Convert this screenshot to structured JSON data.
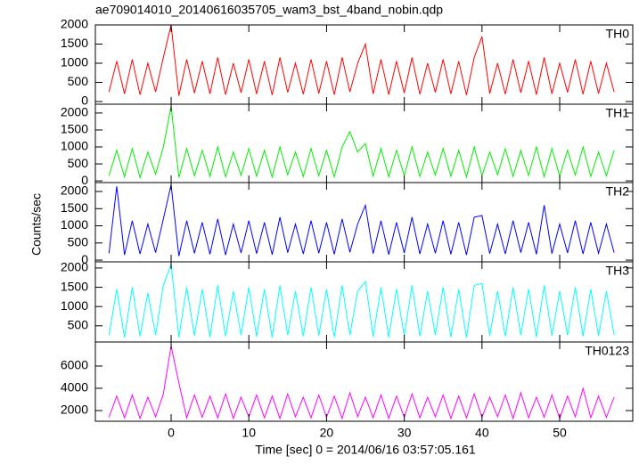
{
  "chart_data": {
    "type": "line",
    "title": "ae709014010_20140616035705_wam3_bst_4band_nobin.qdp",
    "xlabel": "Time [sec] 0 = 2014/06/16 03:57:05.161",
    "ylabel": "Counts/sec",
    "xlim": [
      -9.75,
      59.4
    ],
    "xticks": [
      0,
      10,
      20,
      30,
      40,
      50
    ],
    "x": [
      -8,
      -7,
      -6,
      -5,
      -4,
      -3,
      -2,
      -1,
      0,
      1,
      2,
      3,
      4,
      5,
      6,
      7,
      8,
      9,
      10,
      11,
      12,
      13,
      14,
      15,
      16,
      17,
      18,
      19,
      20,
      21,
      22,
      23,
      24,
      25,
      26,
      27,
      28,
      29,
      30,
      31,
      32,
      33,
      34,
      35,
      36,
      37,
      38,
      39,
      40,
      41,
      42,
      43,
      44,
      45,
      46,
      47,
      48,
      49,
      50,
      51,
      52,
      53,
      54,
      55,
      56,
      57
    ],
    "series": [
      {
        "name": "TH0",
        "color": "#ff0000",
        "ylim": [
          -70,
          2000
        ],
        "yticks": [
          0,
          500,
          1000,
          1500,
          2000
        ],
        "values": [
          250,
          1050,
          200,
          1100,
          180,
          1000,
          250,
          1150,
          2000,
          150,
          1100,
          220,
          1050,
          200,
          1150,
          180,
          1000,
          230,
          1100,
          200,
          1050,
          170,
          1150,
          240,
          1000,
          190,
          1100,
          210,
          1050,
          180,
          1150,
          250,
          1000,
          1500,
          200,
          1100,
          180,
          1050,
          220,
          1150,
          190,
          1000,
          240,
          1100,
          200,
          1050,
          170,
          1150,
          1700,
          210,
          1000,
          190,
          1100,
          230,
          1050,
          180,
          1150,
          200,
          1000,
          240,
          1100,
          190,
          1050,
          210,
          1000,
          250
        ]
      },
      {
        "name": "TH1",
        "color": "#00ee00",
        "ylim": [
          -50,
          2260
        ],
        "yticks": [
          0,
          500,
          1000,
          1500,
          2000
        ],
        "values": [
          150,
          900,
          120,
          950,
          100,
          850,
          200,
          1000,
          2200,
          100,
          950,
          150,
          900,
          130,
          1000,
          120,
          850,
          160,
          950,
          140,
          900,
          110,
          1000,
          180,
          850,
          130,
          950,
          150,
          900,
          120,
          1000,
          1450,
          850,
          1100,
          140,
          950,
          120,
          900,
          160,
          1000,
          130,
          850,
          170,
          950,
          140,
          900,
          110,
          1000,
          150,
          850,
          180,
          950,
          130,
          900,
          160,
          1000,
          120,
          950,
          140,
          900,
          170,
          1000,
          130,
          850,
          150,
          900
        ]
      },
      {
        "name": "TH2",
        "color": "#0000ff",
        "ylim": [
          -50,
          2260
        ],
        "yticks": [
          0,
          500,
          1000,
          1500,
          2000
        ],
        "values": [
          200,
          2150,
          150,
          1150,
          180,
          1050,
          220,
          1200,
          2200,
          120,
          1150,
          200,
          1100,
          170,
          1200,
          150,
          1050,
          210,
          1150,
          190,
          1100,
          160,
          1250,
          220,
          1050,
          180,
          1150,
          200,
          1100,
          170,
          1200,
          230,
          1050,
          1600,
          190,
          1150,
          160,
          1100,
          210,
          1250,
          180,
          1050,
          200,
          1150,
          170,
          1100,
          150,
          1250,
          1300,
          190,
          1050,
          180,
          1150,
          220,
          1100,
          170,
          1600,
          190,
          1050,
          210,
          1150,
          180,
          1100,
          200,
          1050,
          220
        ]
      },
      {
        "name": "TH3",
        "color": "#00ffff",
        "ylim": [
          80,
          2160
        ],
        "yticks": [
          500,
          1000,
          1500,
          2000
        ],
        "values": [
          250,
          1450,
          200,
          1500,
          230,
          1350,
          260,
          1550,
          2100,
          200,
          1500,
          240,
          1450,
          210,
          1550,
          230,
          1400,
          250,
          1500,
          220,
          1450,
          200,
          1550,
          260,
          1400,
          230,
          1500,
          240,
          1450,
          210,
          1550,
          260,
          1400,
          1650,
          220,
          1500,
          200,
          1450,
          240,
          1550,
          230,
          1400,
          260,
          1500,
          210,
          1450,
          200,
          1550,
          1600,
          240,
          1400,
          230,
          1500,
          250,
          1450,
          210,
          1550,
          240,
          1400,
          260,
          1500,
          230,
          1450,
          240,
          1400,
          260
        ]
      },
      {
        "name": "TH0123",
        "color": "#ff00ff",
        "ylim": [
          1040,
          8160
        ],
        "yticks": [
          2000,
          4000,
          6000
        ],
        "values": [
          1400,
          3300,
          1350,
          3400,
          1300,
          3200,
          1450,
          3500,
          7800,
          4500,
          1350,
          3400,
          1400,
          3300,
          1350,
          3500,
          1300,
          3200,
          1450,
          3400,
          1350,
          3300,
          1300,
          3500,
          1450,
          3200,
          1350,
          3400,
          1400,
          3300,
          1300,
          3600,
          1450,
          3200,
          1350,
          3400,
          1300,
          3300,
          1400,
          3500,
          1350,
          3200,
          1450,
          3400,
          1300,
          3300,
          1350,
          3500,
          1400,
          3200,
          1450,
          3400,
          1300,
          3600,
          1350,
          3200,
          1400,
          3400,
          1300,
          3300,
          1450,
          4000,
          1350,
          3300,
          1400,
          3200
        ]
      }
    ]
  }
}
